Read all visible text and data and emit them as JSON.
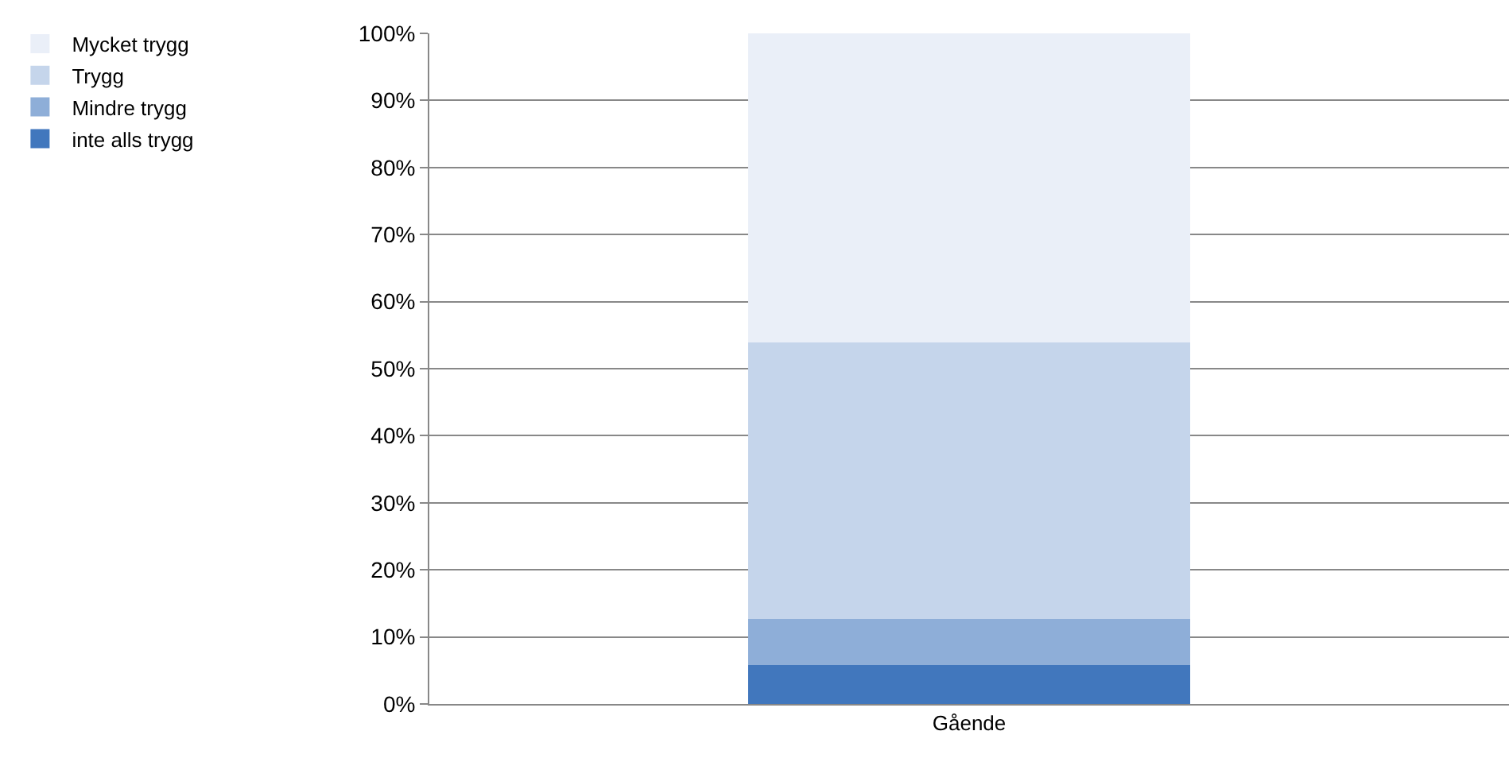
{
  "chart_data": {
    "type": "bar",
    "stacked": true,
    "categories": [
      "Gående"
    ],
    "series": [
      {
        "name": "inte alls trygg",
        "color": "#4177bd",
        "values": [
          5.8
        ]
      },
      {
        "name": "Mindre trygg",
        "color": "#8eaed8",
        "values": [
          6.9
        ]
      },
      {
        "name": "Trygg",
        "color": "#c5d5eb",
        "values": [
          41.2
        ]
      },
      {
        "name": "Mycket trygg",
        "color": "#eaeff8",
        "values": [
          46.1
        ]
      }
    ],
    "ylim": [
      0,
      100
    ],
    "yticks": [
      {
        "value": 0,
        "label": "0%"
      },
      {
        "value": 10,
        "label": "10%"
      },
      {
        "value": 20,
        "label": "20%"
      },
      {
        "value": 30,
        "label": "30%"
      },
      {
        "value": 40,
        "label": "40%"
      },
      {
        "value": 50,
        "label": "50%"
      },
      {
        "value": 60,
        "label": "60%"
      },
      {
        "value": 70,
        "label": "70%"
      },
      {
        "value": 80,
        "label": "80%"
      },
      {
        "value": 90,
        "label": "90%"
      },
      {
        "value": 100,
        "label": "100%"
      }
    ],
    "grid": "y",
    "legend": "top left"
  }
}
